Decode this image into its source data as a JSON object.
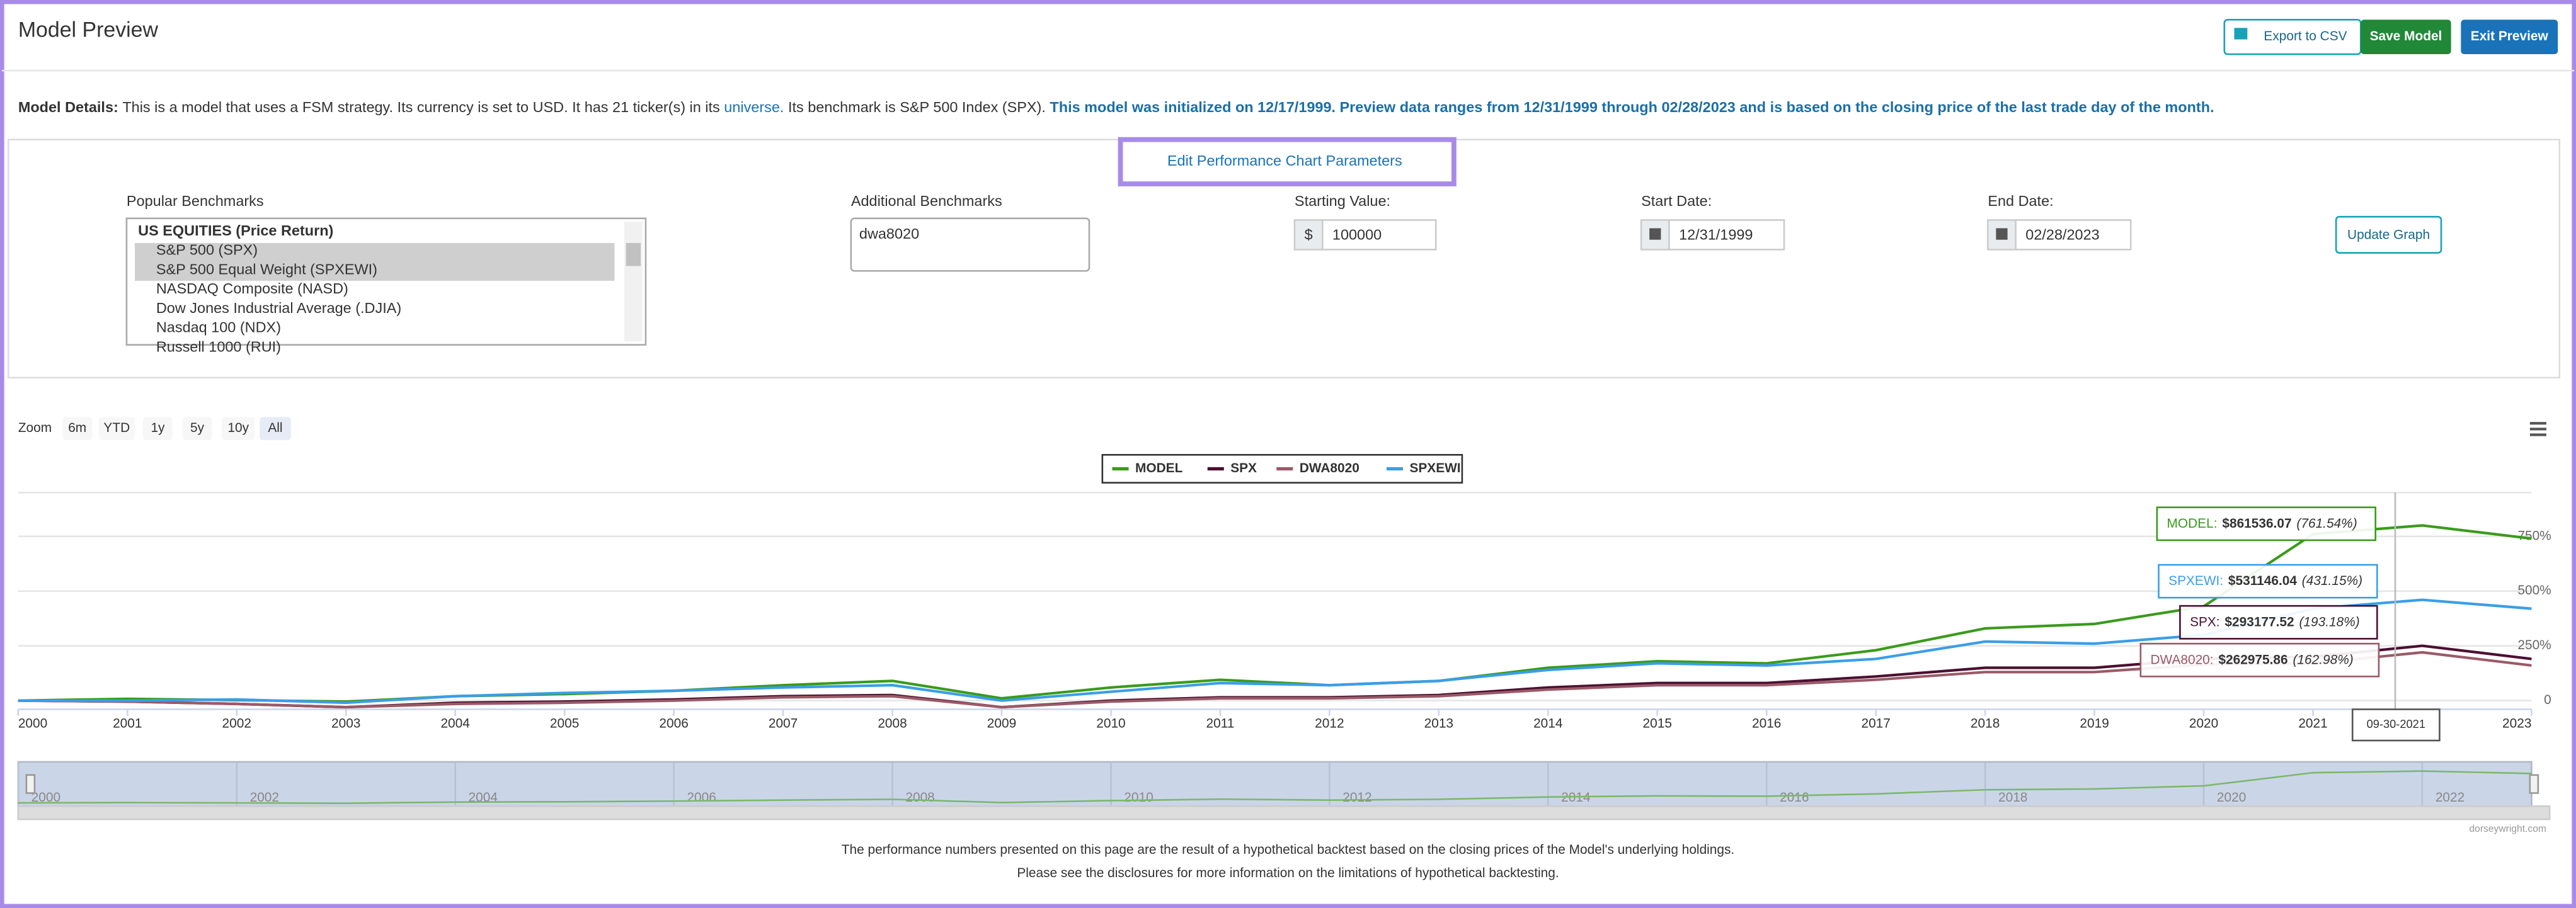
{
  "header": {
    "title": "Model Preview",
    "export": "Export to CSV",
    "save": "Save Model",
    "exit": "Exit Preview"
  },
  "details": {
    "label": "Model Details:",
    "text1": "This is a model that uses a FSM strategy. Its currency is set to USD. It has 21 ticker(s) in its",
    "link": "universe.",
    "text2": "Its benchmark is S&P 500 Index (SPX).",
    "highlight": "This model was initialized on 12/17/1999. Preview data ranges from 12/31/1999 through 02/28/2023 and is based on the closing price of the last trade day of the month."
  },
  "params": {
    "toggle": "Edit Performance Chart Parameters",
    "popular_label": "Popular Benchmarks",
    "popular_options": [
      "US EQUITIES (Price Return)",
      "S&P 500 (SPX)",
      "S&P 500 Equal Weight (SPXEWI)",
      "NASDAQ Composite (NASD)",
      "Dow Jones Industrial Average (.DJIA)",
      "Nasdaq 100 (NDX)",
      "Russell 1000 (RUI)"
    ],
    "additional_label": "Additional Benchmarks",
    "additional_value": "dwa8020",
    "starting_label": "Starting Value:",
    "currency": "$",
    "starting_value": "100000",
    "start_label": "Start Date:",
    "start_value": "12/31/1999",
    "end_label": "End Date:",
    "end_value": "02/28/2023",
    "update": "Update Graph"
  },
  "zoom": {
    "label": "Zoom",
    "options": [
      "6m",
      "YTD",
      "1y",
      "5y",
      "10y",
      "All"
    ]
  },
  "chart_data": {
    "type": "line",
    "x": [
      2000,
      2001,
      2002,
      2003,
      2004,
      2005,
      2006,
      2007,
      2008,
      2009,
      2010,
      2011,
      2012,
      2013,
      2014,
      2015,
      2016,
      2017,
      2018,
      2019,
      2020,
      2021,
      2022,
      2023
    ],
    "xlim": [
      2000,
      2023
    ],
    "xticks": [
      2000,
      2001,
      2002,
      2003,
      2004,
      2005,
      2006,
      2007,
      2008,
      2009,
      2010,
      2011,
      2012,
      2013,
      2014,
      2015,
      2016,
      2017,
      2018,
      2019,
      2020,
      2021,
      2022,
      2023
    ],
    "ylim": [
      -40,
      950
    ],
    "yticks": [
      0,
      {
        "value": 250,
        "label": "250%"
      },
      {
        "value": 500,
        "label": "500%"
      },
      {
        "value": 750,
        "label": "750%"
      }
    ],
    "series": [
      {
        "name": "MODEL",
        "color": "#3a9b1b",
        "values": [
          0,
          8,
          2,
          -5,
          20,
          30,
          45,
          70,
          90,
          10,
          60,
          95,
          70,
          90,
          150,
          180,
          170,
          230,
          330,
          350,
          430,
          760,
          800,
          740
        ]
      },
      {
        "name": "SPX",
        "color": "#4b1030",
        "values": [
          0,
          -5,
          -15,
          -30,
          -10,
          -5,
          5,
          20,
          25,
          -30,
          0,
          15,
          15,
          25,
          60,
          80,
          80,
          110,
          150,
          150,
          190,
          200,
          250,
          190
        ]
      },
      {
        "name": "DWA8020",
        "color": "#9a5a68",
        "values": [
          0,
          -5,
          -15,
          -30,
          -15,
          -10,
          0,
          15,
          20,
          -30,
          -5,
          10,
          10,
          20,
          50,
          70,
          70,
          95,
          130,
          130,
          165,
          170,
          220,
          160
        ]
      },
      {
        "name": "SPXEWI",
        "color": "#3a9ee8",
        "values": [
          0,
          0,
          5,
          -10,
          20,
          35,
          45,
          60,
          70,
          0,
          40,
          80,
          70,
          90,
          140,
          170,
          160,
          190,
          270,
          260,
          300,
          420,
          460,
          420
        ]
      }
    ],
    "tooltips": [
      {
        "name": "MODEL:",
        "value": "$861536.07",
        "pct": "(761.54%)"
      },
      {
        "name": "SPXEWI:",
        "value": "$531146.04",
        "pct": "(431.15%)"
      },
      {
        "name": "SPX:",
        "value": "$293177.52",
        "pct": "(193.18%)"
      },
      {
        "name": "DWA8020:",
        "value": "$262975.86",
        "pct": "(162.98%)"
      }
    ],
    "crosshair_label": "09-30-2021"
  },
  "navigator": {
    "xticks": [
      2000,
      2002,
      2004,
      2006,
      2008,
      2010,
      2012,
      2014,
      2016,
      2018,
      2020,
      2022
    ]
  },
  "credit": "dorseywright.com",
  "footer": {
    "line1": "The performance numbers presented on this page are the result of a hypothetical backtest based on the closing prices of the Model's underlying holdings.",
    "line2": "Please see the disclosures for more information on the limitations of hypothetical backtesting."
  }
}
